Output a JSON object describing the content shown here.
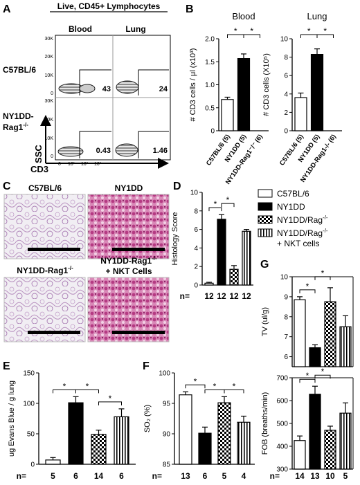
{
  "panel_letters": [
    "A",
    "B",
    "C",
    "D",
    "E",
    "F",
    "G"
  ],
  "flow": {
    "title": "Live, CD45+ Lymphocytes",
    "columns": [
      "Blood",
      "Lung"
    ],
    "rows": [
      {
        "label_lines": [
          "C57BL/6"
        ],
        "values": [
          "43",
          "24"
        ]
      },
      {
        "label_lines": [
          "NY1DD-",
          "Rag1"
        ],
        "values": [
          "0.43",
          "1.46"
        ]
      }
    ],
    "rag_superscript": "-/-",
    "y_ticks": [
      "0",
      "10K",
      "20K",
      "30K"
    ],
    "x_ticks": [
      "0",
      "10¹",
      "10²",
      "10³"
    ],
    "xlabel": "CD3",
    "ylabel": "SSC"
  },
  "histology": {
    "images": [
      {
        "title": "C57BL/6",
        "stain": "light"
      },
      {
        "title": "NY1DD",
        "stain": "dense"
      },
      {
        "title_lines": [
          "NY1DD-Rag1"
        ],
        "sup": "-/-",
        "stain": "light"
      },
      {
        "title_lines": [
          "NY1DD-Rag1",
          "+ NKT Cells"
        ],
        "sup": "-/-",
        "stain": "dense"
      }
    ]
  },
  "legend": {
    "items": [
      {
        "label": "C57BL/6",
        "pattern": "white"
      },
      {
        "label": "NY1DD",
        "pattern": "black"
      },
      {
        "label": "NY1DD/Rag",
        "sup": "-/-",
        "pattern": "check"
      },
      {
        "label": "NY1DD/Rag",
        "sup": "-/-",
        "label2": "+ NKT cells",
        "pattern": "vstripe"
      }
    ]
  },
  "chart_data": [
    {
      "id": "B-blood",
      "type": "bar",
      "title": "Blood",
      "ylabel": "# CD3 cells / μl (x10³)",
      "ylim": [
        0,
        2.0
      ],
      "yticks": [
        "0",
        "0.5",
        "1.0",
        "1.5",
        "2.0"
      ],
      "categories": [
        "C57BL/6 (5)",
        "NY1DD (5)",
        "NY1DD-Rag1⁻/⁻ (6)"
      ],
      "values": [
        0.68,
        1.57,
        0.0
      ],
      "errors": [
        0.05,
        0.1,
        0
      ],
      "patterns": [
        "white",
        "black",
        "white"
      ],
      "significance": [
        "*",
        "*"
      ]
    },
    {
      "id": "B-lung",
      "type": "bar",
      "title": "Lung",
      "ylabel": "# CD3 cells (X10⁵)",
      "ylim": [
        0,
        10
      ],
      "yticks": [
        "0",
        "2",
        "4",
        "6",
        "8",
        "10"
      ],
      "categories": [
        "C57BL/6 (5)",
        "NY1DD (5)",
        "NY1DD-Rag1-/- (6)"
      ],
      "values": [
        3.6,
        8.3,
        0.0
      ],
      "errors": [
        0.5,
        0.6,
        0
      ],
      "patterns": [
        "white",
        "black",
        "white"
      ],
      "significance": [
        "*",
        "*"
      ]
    },
    {
      "id": "D",
      "type": "bar",
      "title": "",
      "ylabel": "Histology Score",
      "ylim": [
        0,
        10
      ],
      "yticks": [
        "0",
        "2",
        "4",
        "6",
        "8",
        "10"
      ],
      "n_prefix": "n=",
      "n": [
        "12",
        "12",
        "12",
        "12"
      ],
      "values": [
        0.2,
        7.1,
        1.7,
        5.8
      ],
      "errors": [
        0.1,
        0.5,
        0.4,
        0.2
      ],
      "patterns": [
        "white",
        "black",
        "check",
        "vstripe"
      ],
      "significance": [
        "*",
        "*"
      ]
    },
    {
      "id": "E",
      "type": "bar",
      "title": "",
      "ylabel": "ug Evans Blue / g lung",
      "ylim": [
        0,
        150
      ],
      "yticks": [
        "0",
        "50",
        "100",
        "150"
      ],
      "n_prefix": "n=",
      "n": [
        "5",
        "6",
        "14",
        "6"
      ],
      "values": [
        7,
        101,
        49,
        78
      ],
      "errors": [
        4,
        10,
        7,
        13
      ],
      "patterns": [
        "white",
        "black",
        "check",
        "vstripe"
      ],
      "significance": [
        "*",
        "*",
        "*"
      ]
    },
    {
      "id": "F",
      "type": "bar",
      "title": "",
      "ylabel": "SO₂ (%)",
      "ylim": [
        85,
        100
      ],
      "yticks": [
        "85",
        "90",
        "95",
        "100"
      ],
      "n_prefix": "n=",
      "n": [
        "13",
        "6",
        "5",
        "4"
      ],
      "values": [
        96.4,
        90.1,
        95.1,
        91.9
      ],
      "errors": [
        0.5,
        1.0,
        1.0,
        1.0
      ],
      "patterns": [
        "white",
        "black",
        "check",
        "vstripe"
      ],
      "significance": [
        "*",
        "*",
        "*"
      ]
    },
    {
      "id": "G-TV",
      "type": "bar",
      "title": "",
      "ylabel": "TV (ul/g)",
      "ylim": [
        5.5,
        10
      ],
      "yticks": [
        "6",
        "7",
        "8",
        "9",
        "10"
      ],
      "values": [
        8.85,
        6.45,
        8.75,
        7.5
      ],
      "errors": [
        0.15,
        0.15,
        0.7,
        0.55
      ],
      "patterns": [
        "white",
        "black",
        "check",
        "vstripe"
      ],
      "significance": [
        "*",
        "*"
      ]
    },
    {
      "id": "G-FOB",
      "type": "bar",
      "title": "",
      "ylabel": "FOB (breaths/min)",
      "ylim": [
        300,
        700
      ],
      "yticks": [
        "300",
        "400",
        "500",
        "600",
        "700"
      ],
      "n_prefix": "n=",
      "n": [
        "14",
        "13",
        "10",
        "5"
      ],
      "values": [
        425,
        628,
        470,
        545
      ],
      "errors": [
        20,
        35,
        18,
        45
      ],
      "patterns": [
        "white",
        "black",
        "check",
        "vstripe"
      ],
      "significance": [
        "*",
        "*"
      ]
    }
  ]
}
